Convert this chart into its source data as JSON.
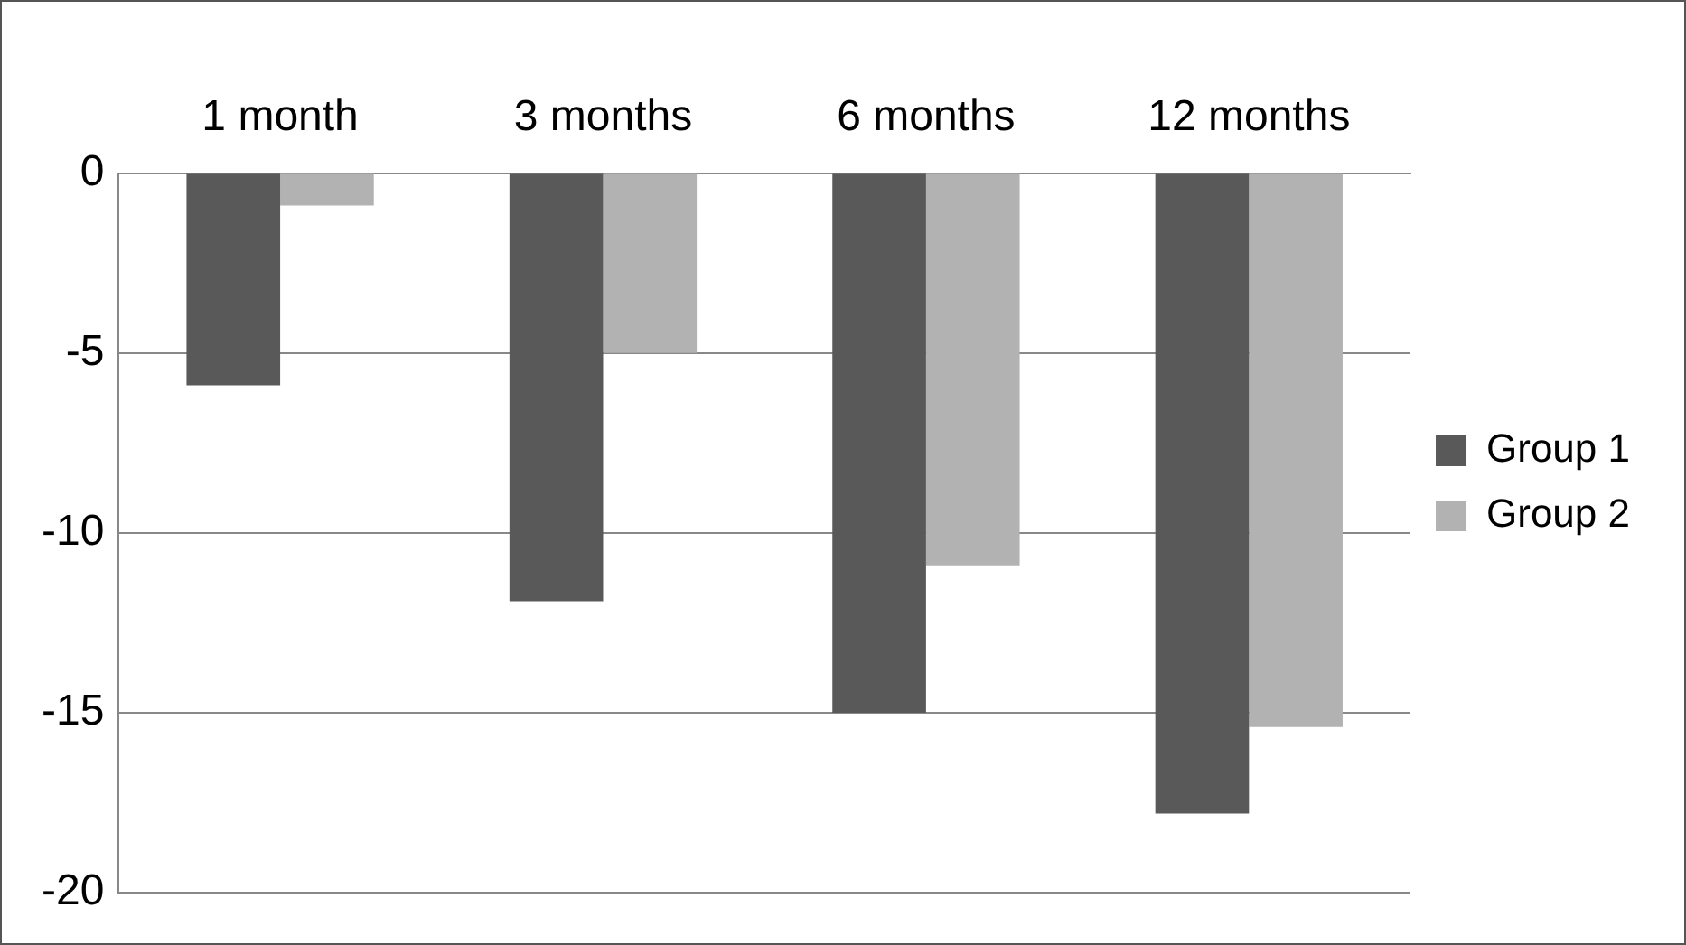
{
  "chart_data": {
    "type": "bar",
    "categories": [
      "1 month",
      "3 months",
      "6 months",
      "12 months"
    ],
    "series": [
      {
        "name": "Group 1",
        "color": "#595959",
        "values": [
          -5.9,
          -11.9,
          -15,
          -17.8
        ]
      },
      {
        "name": "Group 2",
        "color": "#b2b2b2",
        "values": [
          -0.9,
          -5,
          -10.9,
          -15.4
        ]
      }
    ],
    "ylim": [
      -20,
      0
    ],
    "yticks": [
      0,
      -5,
      -10,
      -15,
      -20
    ],
    "grid": "y",
    "legend": "right"
  }
}
